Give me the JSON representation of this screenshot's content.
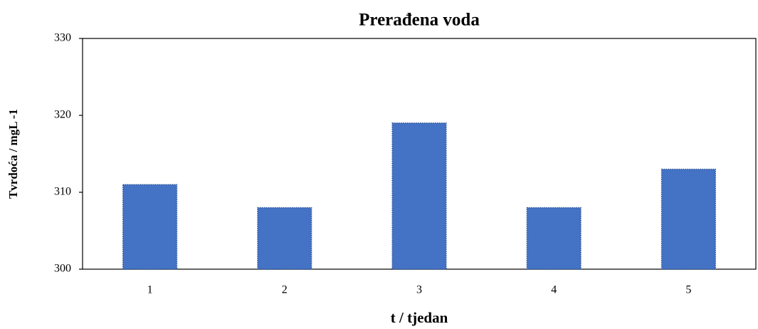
{
  "chart_data": {
    "type": "bar",
    "title": "Prerađena voda",
    "x_label": "t / tjedan",
    "y_label": "Tvrdoća / mgL -1",
    "categories": [
      "1",
      "2",
      "3",
      "4",
      "5"
    ],
    "values": [
      311,
      308,
      319,
      308,
      313
    ],
    "color": "#4472c4",
    "ylim": [
      300,
      330
    ],
    "yticks": [
      300,
      310,
      320,
      330
    ],
    "grid": false
  }
}
